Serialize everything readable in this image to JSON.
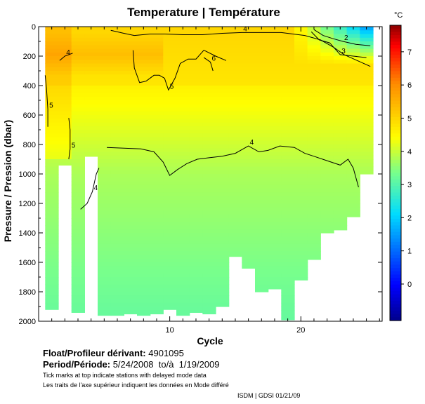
{
  "title": "Temperature | Température",
  "colorbar_unit": "°C",
  "xlabel": "Cycle",
  "ylabel": "Pressure / Pression (dbar)",
  "info": {
    "float_label": "Float/Profileur dérivant:",
    "float_id": "4901095",
    "period_label": "Period/Période:",
    "period_value": "5/24/2008  to/à  1/19/2009",
    "note_en": "Tick marks at top indicate stations with delayed mode data",
    "note_fr": "Les traits de l'axe supérieur indiquent les données en Mode différé",
    "credit": "ISDM | GDSI  01/21/09"
  },
  "chart_data": {
    "type": "heatmap",
    "title": "Temperature | Température",
    "xlabel": "Cycle",
    "ylabel": "Pressure / Pression (dbar)",
    "xlim": [
      0,
      26.2
    ],
    "ylim": [
      2000,
      0
    ],
    "x_ticks": [
      10,
      20
    ],
    "y_ticks": [
      0,
      200,
      400,
      600,
      800,
      1000,
      1200,
      1400,
      1600,
      1800,
      2000
    ],
    "colorbar": {
      "label": "°C",
      "range": [
        -1.1,
        7.8
      ],
      "ticks": [
        0,
        1,
        2,
        3,
        4,
        5,
        6,
        7
      ]
    },
    "profiles": [
      {
        "cycle": 1,
        "max_depth": 1920
      },
      {
        "cycle": 2,
        "max_depth": 940
      },
      {
        "cycle": 3,
        "max_depth": 1940
      },
      {
        "cycle": 4,
        "max_depth": 880
      },
      {
        "cycle": 5,
        "max_depth": 1960
      },
      {
        "cycle": 6,
        "max_depth": 1960
      },
      {
        "cycle": 7,
        "max_depth": 1950
      },
      {
        "cycle": 8,
        "max_depth": 1960
      },
      {
        "cycle": 9,
        "max_depth": 1950
      },
      {
        "cycle": 10,
        "max_depth": 1920
      },
      {
        "cycle": 11,
        "max_depth": 1960
      },
      {
        "cycle": 12,
        "max_depth": 1940
      },
      {
        "cycle": 13,
        "max_depth": 1950
      },
      {
        "cycle": 14,
        "max_depth": 1900
      },
      {
        "cycle": 15,
        "max_depth": 1560
      },
      {
        "cycle": 16,
        "max_depth": 1640
      },
      {
        "cycle": 17,
        "max_depth": 1800
      },
      {
        "cycle": 18,
        "max_depth": 1780
      },
      {
        "cycle": 19,
        "max_depth": 1990
      },
      {
        "cycle": 20,
        "max_depth": 1720
      },
      {
        "cycle": 21,
        "max_depth": 1580
      },
      {
        "cycle": 22,
        "max_depth": 1400
      },
      {
        "cycle": 23,
        "max_depth": 1380
      },
      {
        "cycle": 24,
        "max_depth": 1290
      },
      {
        "cycle": 25,
        "max_depth": 1000
      }
    ],
    "contour_labels": [
      "2",
      "3",
      "4",
      "5",
      "6"
    ],
    "contours": [
      {
        "level": 4,
        "points": [
          [
            3.2,
            1240
          ],
          [
            3.7,
            1200
          ],
          [
            4.1,
            1120
          ],
          [
            4.4,
            1000
          ],
          [
            4.6,
            960
          ]
        ]
      },
      {
        "level": 4,
        "points": [
          [
            5.2,
            820
          ],
          [
            6.5,
            825
          ],
          [
            7.8,
            830
          ],
          [
            8.8,
            850
          ],
          [
            9.5,
            920
          ],
          [
            10.0,
            1010
          ],
          [
            10.6,
            970
          ],
          [
            11.3,
            930
          ],
          [
            12.1,
            900
          ],
          [
            13.0,
            890
          ],
          [
            14.0,
            880
          ],
          [
            15.0,
            860
          ],
          [
            16.0,
            810
          ],
          [
            16.8,
            850
          ],
          [
            17.5,
            840
          ],
          [
            18.4,
            810
          ],
          [
            19.5,
            820
          ],
          [
            20.3,
            860
          ],
          [
            21.0,
            880
          ],
          [
            22.0,
            910
          ],
          [
            23.0,
            940
          ],
          [
            23.6,
            900
          ],
          [
            24.0,
            960
          ],
          [
            24.4,
            1090
          ]
        ]
      },
      {
        "level": 4,
        "points": [
          [
            1.6,
            230
          ],
          [
            2.0,
            200
          ],
          [
            2.6,
            180
          ]
        ]
      },
      {
        "level": 4,
        "points": [
          [
            5.5,
            25
          ],
          [
            6.5,
            45
          ],
          [
            7.3,
            60
          ],
          [
            8.5,
            50
          ],
          [
            9.6,
            50
          ],
          [
            11.0,
            55
          ],
          [
            12.5,
            55
          ],
          [
            14.0,
            45
          ],
          [
            15.5,
            40
          ],
          [
            16.8,
            40
          ],
          [
            18.5,
            40
          ],
          [
            20.3,
            60
          ],
          [
            21.5,
            90
          ],
          [
            22.5,
            140
          ],
          [
            23.3,
            190
          ],
          [
            24.3,
            230
          ],
          [
            25.3,
            270
          ]
        ]
      },
      {
        "level": 5,
        "points": [
          [
            0.5,
            330
          ],
          [
            0.6,
            420
          ],
          [
            0.7,
            560
          ],
          [
            0.7,
            680
          ]
        ]
      },
      {
        "level": 5,
        "points": [
          [
            2.3,
            620
          ],
          [
            2.4,
            700
          ],
          [
            2.4,
            830
          ],
          [
            2.3,
            900
          ]
        ]
      },
      {
        "level": 5,
        "points": [
          [
            7.2,
            160
          ],
          [
            7.3,
            280
          ],
          [
            7.7,
            380
          ],
          [
            8.2,
            370
          ],
          [
            8.8,
            330
          ],
          [
            9.2,
            330
          ],
          [
            9.6,
            350
          ],
          [
            9.9,
            430
          ],
          [
            10.4,
            350
          ],
          [
            10.8,
            250
          ],
          [
            11.4,
            220
          ],
          [
            12.0,
            220
          ],
          [
            12.6,
            160
          ],
          [
            13.5,
            200
          ],
          [
            14.3,
            230
          ]
        ]
      },
      {
        "level": 2,
        "points": [
          [
            21.0,
            20
          ],
          [
            21.7,
            60
          ],
          [
            22.4,
            80
          ],
          [
            23.2,
            100
          ],
          [
            24.2,
            120
          ],
          [
            25.3,
            130
          ]
        ]
      },
      {
        "level": 3,
        "points": [
          [
            20.8,
            35
          ],
          [
            21.4,
            90
          ],
          [
            22.2,
            110
          ],
          [
            23.0,
            190
          ],
          [
            24.0,
            200
          ],
          [
            25.0,
            210
          ]
        ]
      },
      {
        "level": 6,
        "points": [
          [
            12.6,
            210
          ],
          [
            13.1,
            240
          ],
          [
            13.3,
            300
          ]
        ]
      }
    ]
  }
}
